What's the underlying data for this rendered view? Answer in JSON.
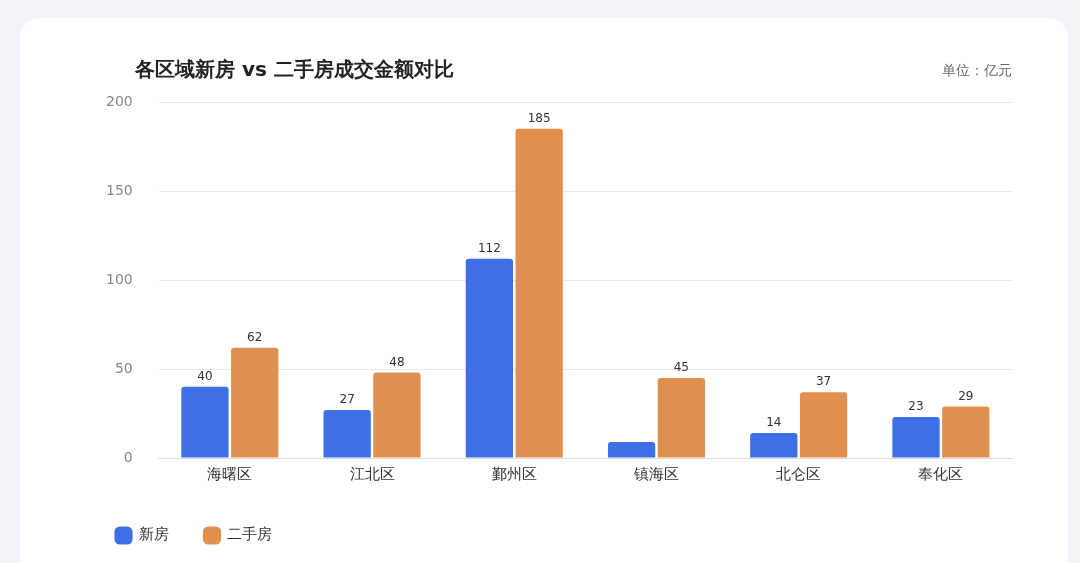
{
  "chart_data": {
    "type": "bar",
    "title": "各区域新房 vs 二手房成交金额对比",
    "annotations": [
      "单位：亿元"
    ],
    "categories": [
      "海曙区",
      "江北区",
      "鄞州区",
      "镇海区",
      "北仑区",
      "奉化区"
    ],
    "series": [
      {
        "name": "新房",
        "color": "#3f6fe4",
        "values": [
          40,
          27,
          112,
          9,
          14,
          23
        ],
        "value_labels": [
          "40",
          "27",
          "112",
          null,
          "14",
          "23"
        ]
      },
      {
        "name": "二手房",
        "color": "#e18f4e",
        "values": [
          62,
          48,
          185,
          45,
          37,
          29
        ],
        "value_labels": [
          "62",
          "48",
          "185",
          "45",
          "37",
          "29"
        ]
      }
    ],
    "ylim": [
      0,
      200
    ],
    "yticks": [
      0,
      50,
      100,
      150,
      200
    ],
    "grid": "y",
    "legend": "bottom left"
  }
}
